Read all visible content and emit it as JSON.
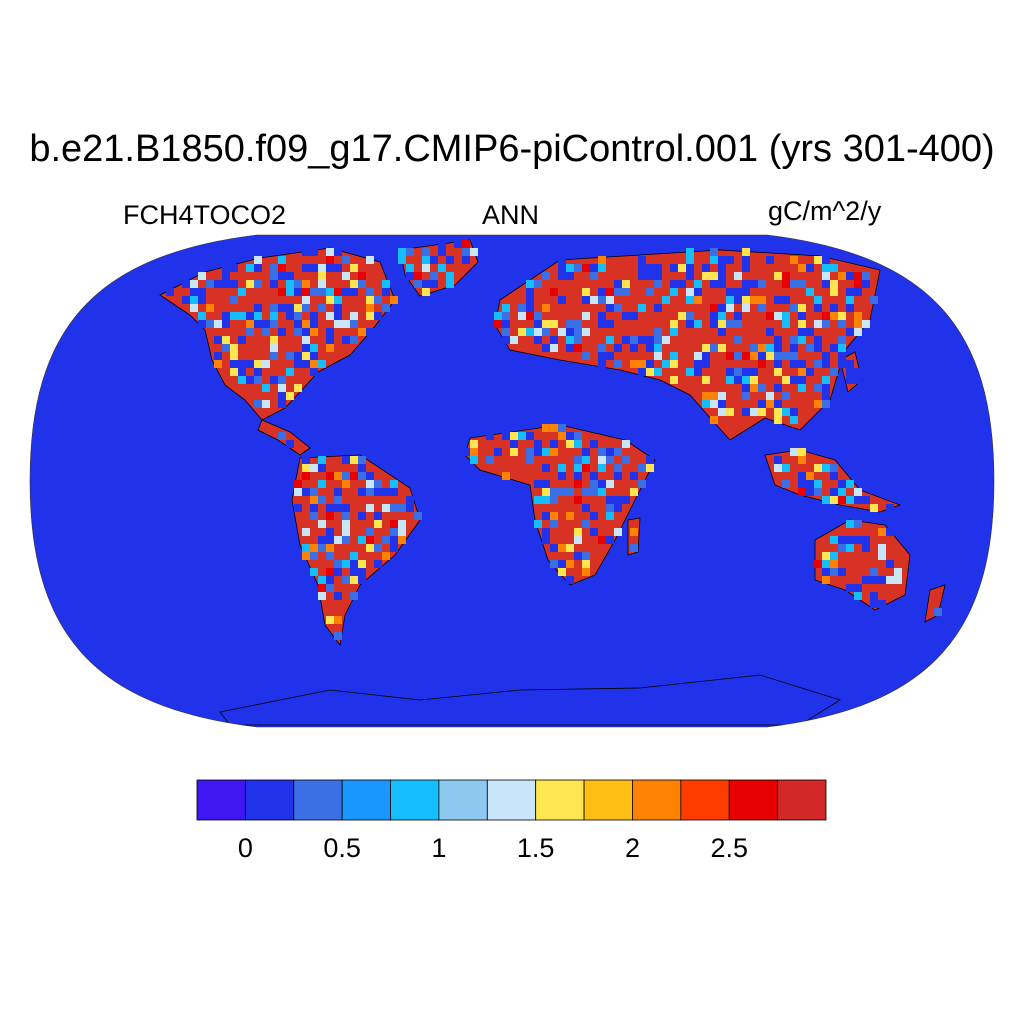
{
  "title": "b.e21.B1850.f09_g17.CMIP6-piControl.001 (yrs 301-400)",
  "left_label": "FCH4TOCO2",
  "center_label": "ANN",
  "right_label": "gC/m^2/y",
  "map": {
    "projection": "Robinson",
    "ocean_color": "#2033ea",
    "coastline_color": "#000000",
    "land_categories": [
      "red",
      "blue",
      "cyan",
      "light-blue",
      "yellow",
      "orange"
    ]
  },
  "colorbar": {
    "colors": [
      "#4016f2",
      "#2033ea",
      "#3a6fe6",
      "#1996ff",
      "#14beff",
      "#8cc8f0",
      "#c8e6f8",
      "#ffe650",
      "#ffbe14",
      "#ff8200",
      "#ff3c00",
      "#e80000",
      "#d32828"
    ],
    "tick_labels": [
      "0",
      "0.5",
      "1",
      "1.5",
      "2",
      "2.5"
    ]
  }
}
